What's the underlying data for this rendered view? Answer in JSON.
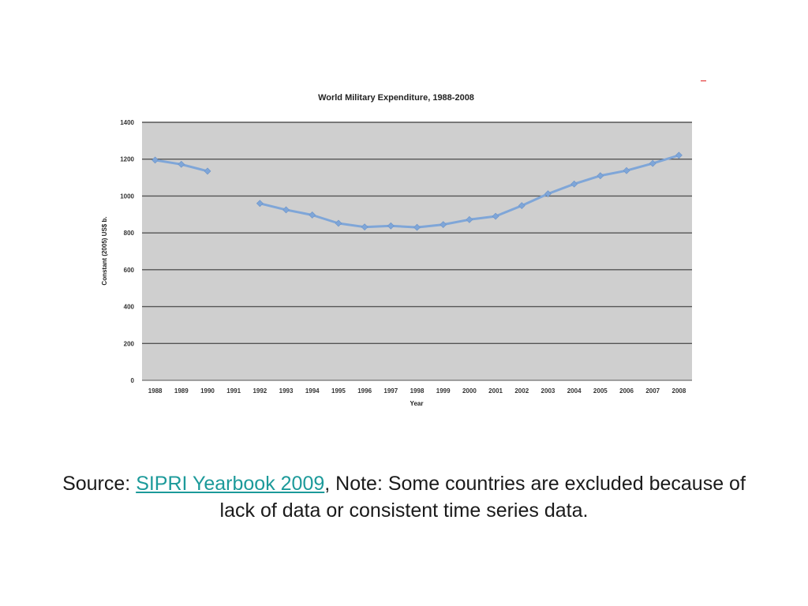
{
  "chart_data": {
    "type": "line",
    "title": "World Military Expenditure, 1988-2008",
    "xlabel": "Year",
    "ylabel": "Constant (2005) US$ b.",
    "categories": [
      "1988",
      "1989",
      "1990",
      "1991",
      "1992",
      "1993",
      "1994",
      "1995",
      "1996",
      "1997",
      "1998",
      "1999",
      "2000",
      "2001",
      "2002",
      "2003",
      "2004",
      "2005",
      "2006",
      "2007",
      "2008"
    ],
    "series": [
      {
        "values": [
          1195,
          1172,
          1135,
          null,
          960,
          925,
          897,
          852,
          832,
          838,
          830,
          845,
          872,
          890,
          948,
          1012,
          1065,
          1110,
          1138,
          1177,
          1221
        ]
      }
    ],
    "yticks": [
      "0",
      "200",
      "400",
      "600",
      "800",
      "1000",
      "1200",
      "1400"
    ],
    "ylim": [
      0,
      1400
    ],
    "grid": true,
    "legend": "none",
    "colors": {
      "plot_background": "#cfcfcf",
      "gridline": "#555555",
      "line": "#7fa6d8",
      "marker": "#7fa6d8"
    }
  },
  "caption": {
    "prefix": "Source: ",
    "link_text": "SIPRI Yearbook 2009",
    "suffix": ", Note: Some countries are excluded because of lack of data or consistent time series data."
  }
}
